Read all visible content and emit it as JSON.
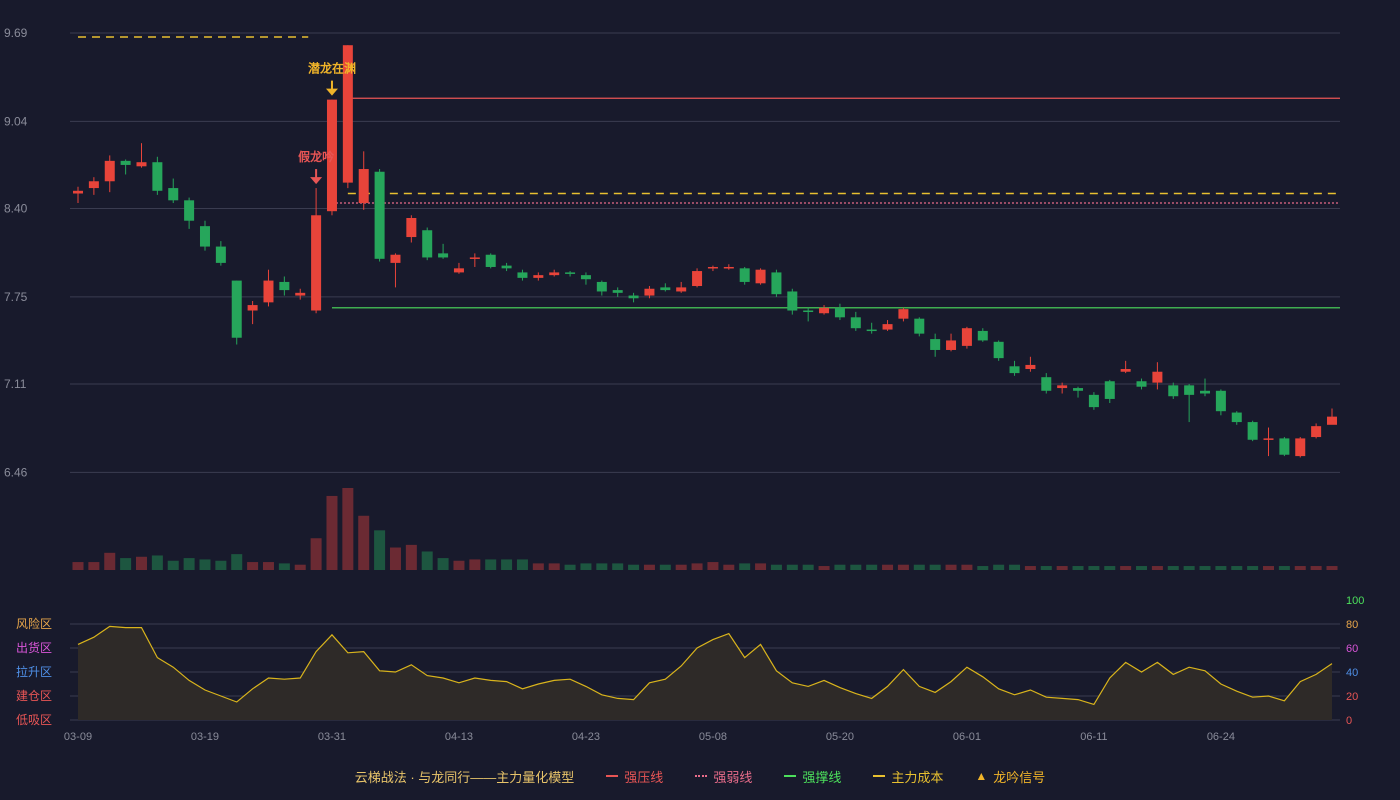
{
  "chart_data": {
    "type": "candlestick",
    "price_axis": {
      "ylim": [
        6.0,
        9.8
      ],
      "ticks": [
        6.46,
        7.11,
        7.75,
        8.4,
        9.04,
        9.69
      ]
    },
    "x_ticks": [
      {
        "index": 0,
        "label": "03-09"
      },
      {
        "index": 8,
        "label": "03-19"
      },
      {
        "index": 16,
        "label": "03-31"
      },
      {
        "index": 24,
        "label": "04-13"
      },
      {
        "index": 32,
        "label": "04-23"
      },
      {
        "index": 40,
        "label": "05-08"
      },
      {
        "index": 48,
        "label": "05-20"
      },
      {
        "index": 56,
        "label": "06-01"
      },
      {
        "index": 64,
        "label": "06-11"
      },
      {
        "index": 72,
        "label": "06-24"
      }
    ],
    "candles": [
      [
        8.51,
        8.53,
        8.56,
        8.44
      ],
      [
        8.55,
        8.6,
        8.63,
        8.5
      ],
      [
        8.6,
        8.75,
        8.79,
        8.52
      ],
      [
        8.75,
        8.72,
        8.76,
        8.65
      ],
      [
        8.71,
        8.74,
        8.88,
        8.7
      ],
      [
        8.74,
        8.53,
        8.78,
        8.5
      ],
      [
        8.55,
        8.46,
        8.62,
        8.44
      ],
      [
        8.46,
        8.31,
        8.48,
        8.25
      ],
      [
        8.27,
        8.12,
        8.31,
        8.09
      ],
      [
        8.12,
        8.0,
        8.16,
        7.98
      ],
      [
        7.87,
        7.45,
        7.87,
        7.4
      ],
      [
        7.65,
        7.69,
        7.72,
        7.55
      ],
      [
        7.71,
        7.87,
        7.95,
        7.68
      ],
      [
        7.86,
        7.8,
        7.9,
        7.76
      ],
      [
        7.76,
        7.78,
        7.81,
        7.73
      ],
      [
        7.65,
        8.35,
        8.55,
        7.63
      ],
      [
        8.38,
        9.2,
        9.2,
        8.35
      ],
      [
        8.59,
        9.6,
        9.6,
        8.55
      ],
      [
        8.44,
        8.69,
        8.82,
        8.39
      ],
      [
        8.67,
        8.03,
        8.69,
        8.01
      ],
      [
        8.0,
        8.06,
        8.07,
        7.82
      ],
      [
        8.19,
        8.33,
        8.35,
        8.15
      ],
      [
        8.24,
        8.04,
        8.26,
        8.02
      ],
      [
        8.07,
        8.04,
        8.14,
        8.03
      ],
      [
        7.93,
        7.96,
        8.0,
        7.92
      ],
      [
        8.03,
        8.04,
        8.07,
        7.97
      ],
      [
        8.06,
        7.97,
        8.07,
        7.96
      ],
      [
        7.98,
        7.96,
        8.0,
        7.94
      ],
      [
        7.93,
        7.89,
        7.95,
        7.87
      ],
      [
        7.89,
        7.91,
        7.93,
        7.87
      ],
      [
        7.91,
        7.93,
        7.95,
        7.9
      ],
      [
        7.93,
        7.92,
        7.94,
        7.9
      ],
      [
        7.91,
        7.88,
        7.93,
        7.84
      ],
      [
        7.86,
        7.79,
        7.87,
        7.76
      ],
      [
        7.8,
        7.78,
        7.82,
        7.75
      ],
      [
        7.76,
        7.74,
        7.78,
        7.71
      ],
      [
        7.76,
        7.81,
        7.83,
        7.74
      ],
      [
        7.82,
        7.8,
        7.85,
        7.79
      ],
      [
        7.79,
        7.82,
        7.86,
        7.78
      ],
      [
        7.83,
        7.94,
        7.96,
        7.82
      ],
      [
        7.96,
        7.97,
        7.98,
        7.94
      ],
      [
        7.97,
        7.97,
        7.99,
        7.95
      ],
      [
        7.96,
        7.86,
        7.97,
        7.84
      ],
      [
        7.85,
        7.95,
        7.96,
        7.84
      ],
      [
        7.93,
        7.77,
        7.95,
        7.75
      ],
      [
        7.79,
        7.65,
        7.81,
        7.62
      ],
      [
        7.65,
        7.64,
        7.67,
        7.57
      ],
      [
        7.63,
        7.67,
        7.69,
        7.62
      ],
      [
        7.67,
        7.6,
        7.7,
        7.58
      ],
      [
        7.6,
        7.52,
        7.64,
        7.5
      ],
      [
        7.51,
        7.5,
        7.56,
        7.48
      ],
      [
        7.51,
        7.55,
        7.58,
        7.5
      ],
      [
        7.59,
        7.66,
        7.67,
        7.57
      ],
      [
        7.59,
        7.48,
        7.6,
        7.46
      ],
      [
        7.44,
        7.36,
        7.48,
        7.31
      ],
      [
        7.36,
        7.43,
        7.48,
        7.35
      ],
      [
        7.39,
        7.52,
        7.53,
        7.37
      ],
      [
        7.5,
        7.43,
        7.52,
        7.42
      ],
      [
        7.42,
        7.3,
        7.43,
        7.28
      ],
      [
        7.24,
        7.19,
        7.28,
        7.17
      ],
      [
        7.22,
        7.25,
        7.31,
        7.2
      ],
      [
        7.16,
        7.06,
        7.19,
        7.04
      ],
      [
        7.08,
        7.1,
        7.12,
        7.04
      ],
      [
        7.08,
        7.06,
        7.09,
        7.01
      ],
      [
        7.03,
        6.94,
        7.05,
        6.92
      ],
      [
        7.13,
        7.0,
        7.14,
        6.97
      ],
      [
        7.2,
        7.22,
        7.28,
        7.19
      ],
      [
        7.13,
        7.09,
        7.15,
        7.07
      ],
      [
        7.12,
        7.2,
        7.27,
        7.07
      ],
      [
        7.1,
        7.02,
        7.12,
        7.0
      ],
      [
        7.1,
        7.03,
        7.11,
        6.83
      ],
      [
        7.06,
        7.04,
        7.15,
        7.02
      ],
      [
        7.06,
        6.91,
        7.07,
        6.88
      ],
      [
        6.9,
        6.83,
        6.91,
        6.81
      ],
      [
        6.83,
        6.7,
        6.84,
        6.69
      ],
      [
        6.7,
        6.71,
        6.79,
        6.58
      ],
      [
        6.71,
        6.59,
        6.72,
        6.58
      ],
      [
        6.58,
        6.71,
        6.72,
        6.57
      ],
      [
        6.72,
        6.8,
        6.82,
        6.71
      ],
      [
        6.81,
        6.87,
        6.93,
        6.82
      ]
    ],
    "volume": [
      6,
      6,
      13,
      9,
      10,
      11,
      7,
      9,
      8,
      7,
      12,
      6,
      6,
      5,
      4,
      24,
      56,
      62,
      41,
      30,
      17,
      19,
      14,
      9,
      7,
      8,
      8,
      8,
      8,
      5,
      5,
      4,
      5,
      5,
      5,
      4,
      4,
      4,
      4,
      5,
      6,
      4,
      5,
      5,
      4,
      4,
      4,
      3,
      4,
      4,
      4,
      4,
      4,
      4,
      4,
      4,
      4,
      3,
      4,
      4,
      3,
      3,
      3,
      3,
      3,
      3,
      3,
      3,
      3,
      3,
      3,
      3,
      3,
      3,
      3,
      3,
      3,
      3,
      3,
      3
    ],
    "indicator": {
      "name": "主力量化模型",
      "ylim": [
        0,
        100
      ],
      "right_ticks": [
        0,
        20,
        40,
        60,
        80,
        100
      ],
      "zones": [
        {
          "label": "风险区",
          "at": 80,
          "color": "#e8a64a"
        },
        {
          "label": "出货区",
          "at": 60,
          "color": "#d955d9"
        },
        {
          "label": "拉升区",
          "at": 40,
          "color": "#4f8fe6"
        },
        {
          "label": "建仓区",
          "at": 20,
          "color": "#e85555"
        },
        {
          "label": "低吸区",
          "at": 0,
          "color": "#e85555"
        }
      ],
      "values": [
        63,
        69,
        78,
        77,
        77,
        52,
        44,
        33,
        25,
        20,
        15,
        26,
        35,
        34,
        35,
        57,
        71,
        56,
        57,
        41,
        40,
        46,
        37,
        35,
        31,
        35,
        33,
        32,
        26,
        30,
        33,
        34,
        28,
        21,
        18,
        17,
        31,
        34,
        45,
        60,
        67,
        72,
        52,
        63,
        41,
        31,
        28,
        33,
        27,
        22,
        18,
        28,
        42,
        28,
        23,
        32,
        44,
        36,
        26,
        21,
        25,
        19,
        18,
        17,
        13,
        35,
        48,
        40,
        48,
        38,
        44,
        41,
        30,
        24,
        19,
        20,
        16,
        32,
        38,
        47
      ]
    },
    "levels": [
      {
        "name": "强压线",
        "value": 9.21,
        "color": "#e85555",
        "style": "solid",
        "from_index": 17
      },
      {
        "name": "强弱线",
        "value": 8.44,
        "color": "#e86c8a",
        "style": "dotted",
        "from_index": 16
      },
      {
        "name": "强撑线",
        "value": 7.67,
        "color": "#4ce05c",
        "style": "solid",
        "from_index": 16
      },
      {
        "name": "主力成本",
        "value": 8.51,
        "color": "#e8c030",
        "style": "dashed",
        "from_index": 17
      },
      {
        "name": "主力成本",
        "value": 9.66,
        "color": "#e8c030",
        "style": "dashed",
        "from_index": 0,
        "to_index": 14
      }
    ],
    "signals": [
      {
        "label": "假龙吟",
        "index": 15,
        "color": "#e85555"
      },
      {
        "label": "潜龙在渊",
        "index": 16,
        "color": "#f0b429"
      }
    ],
    "colors": {
      "up": "#e8443a",
      "down": "#26a65b",
      "volume_up": "#6b2a33",
      "volume_down": "#1d5640",
      "indicator_line": "#d9b41c",
      "indicator_fill": "#2e2a28",
      "grid": "#3a3c50",
      "axis_text": "#8a8c9a"
    }
  },
  "legend": {
    "title": "云梯战法 · 与龙同行——主力量化模型",
    "items": [
      {
        "label": "强压线",
        "color": "#e85555",
        "style": "solid"
      },
      {
        "label": "强弱线",
        "color": "#e86c8a",
        "style": "dot"
      },
      {
        "label": "强撑线",
        "color": "#4ce05c",
        "style": "solid"
      },
      {
        "label": "主力成本",
        "color": "#e8c030",
        "style": "dash"
      },
      {
        "label": "龙吟信号",
        "color": "#f0b429",
        "style": "tri"
      }
    ]
  }
}
